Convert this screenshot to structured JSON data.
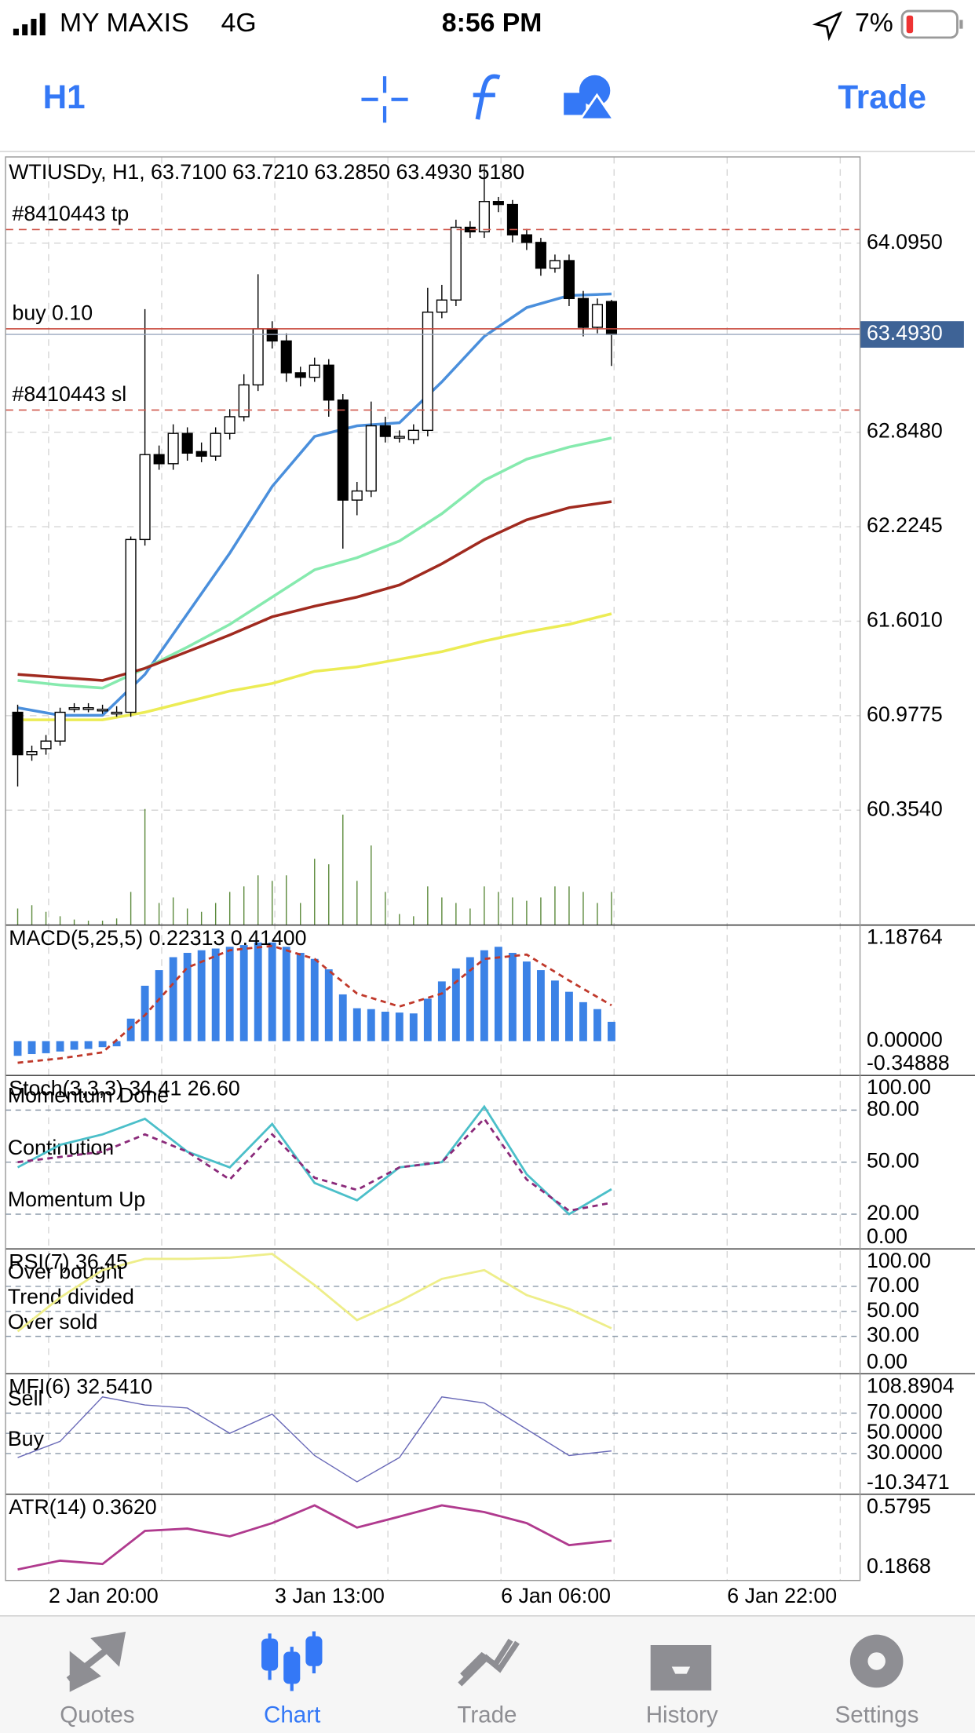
{
  "status_bar": {
    "carrier": "MY MAXIS",
    "network": "4G",
    "time": "8:56 PM",
    "battery": "7%"
  },
  "toolbar": {
    "timeframe": "H1",
    "trade": "Trade"
  },
  "chart": {
    "type": "candlestick",
    "symbol_header": "WTIUSDy, H1, 63.7100 63.7210 63.2850 63.4930 5180",
    "ylim": [
      59.596,
      64.664
    ],
    "yticks": [
      {
        "value": 64.095,
        "label": "64.0950"
      },
      {
        "value": 62.848,
        "label": "62.8480"
      },
      {
        "value": 62.2245,
        "label": "62.2245"
      },
      {
        "value": 61.601,
        "label": "61.6010"
      },
      {
        "value": 60.9775,
        "label": "60.9775"
      },
      {
        "value": 60.354,
        "label": "60.3540"
      }
    ],
    "current_price": {
      "value": 63.493,
      "label": "63.4930"
    },
    "levels": [
      {
        "label": "#8410443 tp",
        "value": 64.185,
        "color": "#d0584c"
      },
      {
        "label": "buy 0.10",
        "value": 63.53,
        "color": "#c8463a"
      },
      {
        "label": "#8410443 sl",
        "value": 62.994,
        "color": "#d0584c"
      }
    ],
    "candles": {
      "open": [
        61.0,
        60.72,
        60.76,
        60.81,
        61.03,
        61.03,
        61.02,
        61.0,
        61.0,
        62.14,
        62.7,
        62.64,
        62.84,
        62.72,
        62.69,
        62.84,
        62.95,
        63.16,
        63.53,
        63.45,
        63.24,
        63.21,
        63.29,
        63.06,
        62.4,
        62.46,
        62.89,
        62.82,
        62.8,
        62.86,
        63.64,
        63.72,
        64.2,
        64.17,
        64.37,
        64.35,
        64.15,
        64.1,
        63.93,
        63.98,
        63.73,
        63.54,
        63.71
      ],
      "high": [
        61.05,
        60.78,
        60.85,
        61.03,
        61.06,
        61.06,
        61.05,
        61.04,
        62.16,
        63.66,
        62.76,
        62.9,
        62.88,
        62.78,
        62.88,
        63.0,
        63.23,
        63.89,
        63.58,
        63.5,
        63.28,
        63.34,
        63.33,
        63.1,
        62.52,
        63.05,
        62.95,
        62.86,
        62.9,
        63.8,
        63.82,
        64.25,
        64.24,
        64.6,
        64.4,
        64.38,
        64.19,
        64.13,
        64.02,
        64.02,
        63.78,
        63.73,
        63.721
      ],
      "low": [
        60.51,
        60.68,
        60.72,
        60.78,
        61.0,
        61.0,
        60.99,
        60.97,
        60.97,
        62.1,
        62.6,
        62.6,
        62.66,
        62.65,
        62.66,
        62.8,
        62.92,
        63.12,
        63.4,
        63.18,
        63.15,
        63.18,
        62.95,
        62.08,
        62.3,
        62.42,
        62.78,
        62.78,
        62.77,
        62.82,
        63.6,
        63.68,
        64.13,
        64.13,
        64.3,
        64.1,
        64.05,
        63.88,
        63.9,
        63.68,
        63.48,
        63.5,
        63.285
      ],
      "close": [
        60.72,
        60.74,
        60.81,
        61.0,
        61.03,
        61.03,
        61.02,
        61.0,
        62.14,
        62.7,
        62.64,
        62.84,
        62.71,
        62.69,
        62.84,
        62.95,
        63.16,
        63.53,
        63.45,
        63.24,
        63.21,
        63.29,
        63.06,
        62.4,
        62.46,
        62.89,
        62.82,
        62.82,
        62.86,
        63.64,
        63.72,
        64.2,
        64.17,
        64.37,
        64.35,
        64.15,
        64.1,
        63.93,
        63.98,
        63.73,
        63.54,
        63.69,
        63.493
      ]
    },
    "volume": [
      150,
      180,
      120,
      80,
      50,
      40,
      40,
      60,
      300,
      1050,
      200,
      250,
      150,
      120,
      200,
      300,
      350,
      450,
      400,
      450,
      200,
      600,
      550,
      1000,
      400,
      720,
      300,
      100,
      80,
      350,
      250,
      200,
      150,
      350,
      300,
      250,
      220,
      250,
      350,
      350,
      300,
      200,
      300
    ],
    "sample_bars": [
      0,
      3,
      6,
      9,
      12,
      15,
      18,
      21,
      24,
      27,
      30,
      33,
      36,
      39,
      42
    ],
    "moving_averages": [
      {
        "color": "#4a8fdc",
        "values": [
          61.03,
          60.98,
          60.98,
          61.25,
          61.65,
          62.05,
          62.49,
          62.82,
          62.89,
          62.91,
          63.18,
          63.48,
          63.67,
          63.75,
          63.76
        ]
      },
      {
        "color": "#86eaae",
        "values": [
          61.21,
          61.18,
          61.16,
          61.29,
          61.43,
          61.58,
          61.76,
          61.94,
          62.02,
          62.13,
          62.31,
          62.53,
          62.67,
          62.75,
          62.81
        ]
      },
      {
        "color": "#a02a1f",
        "values": [
          61.25,
          61.23,
          61.21,
          61.29,
          61.4,
          61.51,
          61.63,
          61.7,
          61.76,
          61.84,
          61.98,
          62.14,
          62.27,
          62.35,
          62.39
        ]
      },
      {
        "color": "#ecec55",
        "values": [
          60.95,
          60.95,
          60.95,
          61.0,
          61.07,
          61.14,
          61.19,
          61.27,
          61.3,
          61.35,
          61.4,
          61.47,
          61.53,
          61.58,
          61.65
        ]
      }
    ],
    "xlabels": [
      "2 Jan 20:00",
      "3 Jan 13:00",
      "6 Jan 06:00",
      "6 Jan 22:00"
    ],
    "indicators": [
      {
        "type": "macd",
        "label": "MACD(5,25,5) 0.22313 0.41400",
        "ylim": [
          -0.396,
          1.341
        ],
        "yticks": [
          1.18764,
          {
            "value": 0,
            "label": "0.00000"
          },
          -0.34888
        ],
        "histogram": {
          "color": "#3b82e6",
          "values": [
            -0.17,
            -0.15,
            -0.14,
            -0.12,
            -0.1,
            -0.09,
            -0.07,
            -0.06,
            0.26,
            0.64,
            0.82,
            0.97,
            1.02,
            1.05,
            1.07,
            1.09,
            1.11,
            1.14,
            1.14,
            1.09,
            1.02,
            0.95,
            0.83,
            0.54,
            0.38,
            0.37,
            0.34,
            0.33,
            0.32,
            0.49,
            0.69,
            0.84,
            0.97,
            1.05,
            1.09,
            1.02,
            0.92,
            0.82,
            0.7,
            0.57,
            0.45,
            0.37,
            0.22313
          ]
        },
        "series": [
          {
            "color": "#c0392b",
            "dashed": true,
            "values": [
              -0.25,
              -0.2,
              -0.13,
              0.3,
              0.85,
              1.05,
              1.1,
              0.95,
              0.55,
              0.4,
              0.55,
              0.95,
              1.0,
              0.7,
              0.414
            ]
          }
        ]
      },
      {
        "type": "lines",
        "label": "Stoch(3,3,3) 34.41 26.60",
        "ylim": [
          0,
          100
        ],
        "yticks": [
          {
            "value": 100,
            "label": "100.00"
          },
          {
            "value": 80,
            "label": "80.00"
          },
          {
            "value": 50,
            "label": "50.00"
          },
          {
            "value": 20,
            "label": "20.00"
          },
          {
            "value": 0,
            "label": "0.00"
          }
        ],
        "guides": [
          {
            "value": 80,
            "label": "Momentum Done"
          },
          {
            "value": 50,
            "label": "Continution"
          },
          {
            "value": 20,
            "label": "Momentum Up"
          }
        ],
        "series": [
          {
            "color": "#4bbfc9",
            "values": [
              47,
              60,
              66,
              75,
              56,
              47,
              72,
              38,
              28,
              47,
              50,
              82,
              43,
              20,
              34.41
            ]
          },
          {
            "color": "#8b2a7a",
            "dashed": true,
            "values": [
              50,
              53,
              56,
              66,
              56,
              40,
              66,
              41,
              34,
              47,
              50,
              75,
              40,
              22,
              26.6
            ]
          }
        ]
      },
      {
        "type": "lines",
        "label": "RSI(7) 36.45",
        "ylim": [
          0,
          100
        ],
        "yticks": [
          {
            "value": 100,
            "label": "100.00"
          },
          {
            "value": 70,
            "label": "70.00"
          },
          {
            "value": 50,
            "label": "50.00"
          },
          {
            "value": 30,
            "label": "30.00"
          },
          {
            "value": 0,
            "label": "0.00"
          }
        ],
        "guides": [
          {
            "value": 70,
            "label": "Over bought"
          },
          {
            "value": 50,
            "label": "Trend divided"
          },
          {
            "value": 30,
            "label": "Over sold"
          }
        ],
        "series": [
          {
            "color": "#eeee8a",
            "values": [
              34,
              61,
              83,
              92,
              92,
              93,
              96,
              71,
              43,
              58,
              76,
              83,
              63,
              52,
              36.45
            ]
          }
        ]
      },
      {
        "type": "lines",
        "label": "MFI(6) 32.5410",
        "ylim": [
          -10.3471,
          108.8904
        ],
        "yticks": [
          108.8904,
          {
            "value": 70,
            "label": "70.0000"
          },
          {
            "value": 50,
            "label": "50.0000"
          },
          {
            "value": 30,
            "label": "30.0000"
          },
          -10.3471
        ],
        "guides": [
          {
            "value": 70,
            "label": "Sell"
          },
          {
            "value": 50
          },
          {
            "value": 30,
            "label": "Buy"
          }
        ],
        "series": [
          {
            "color": "#6a6ab8",
            "values": [
              26,
              42,
              86,
              78,
              75,
              50,
              69,
              28,
              2,
              26,
              86,
              80,
              54,
              28,
              32.541
            ]
          }
        ]
      },
      {
        "type": "lines",
        "label": "ATR(14) 0.3620",
        "ylim": [
          0.0995,
          0.667
        ],
        "yticks": [
          0.5795,
          0.1868
        ],
        "series": [
          {
            "color": "#b03a8e",
            "values": [
              0.172,
              0.23,
              0.208,
              0.426,
              0.441,
              0.39,
              0.477,
              0.594,
              0.448,
              0.52,
              0.594,
              0.55,
              0.477,
              0.332,
              0.362
            ]
          }
        ]
      }
    ]
  },
  "tab_bar": {
    "tabs": [
      "Quotes",
      "Chart",
      "Trade",
      "History",
      "Settings"
    ],
    "active": 1
  }
}
